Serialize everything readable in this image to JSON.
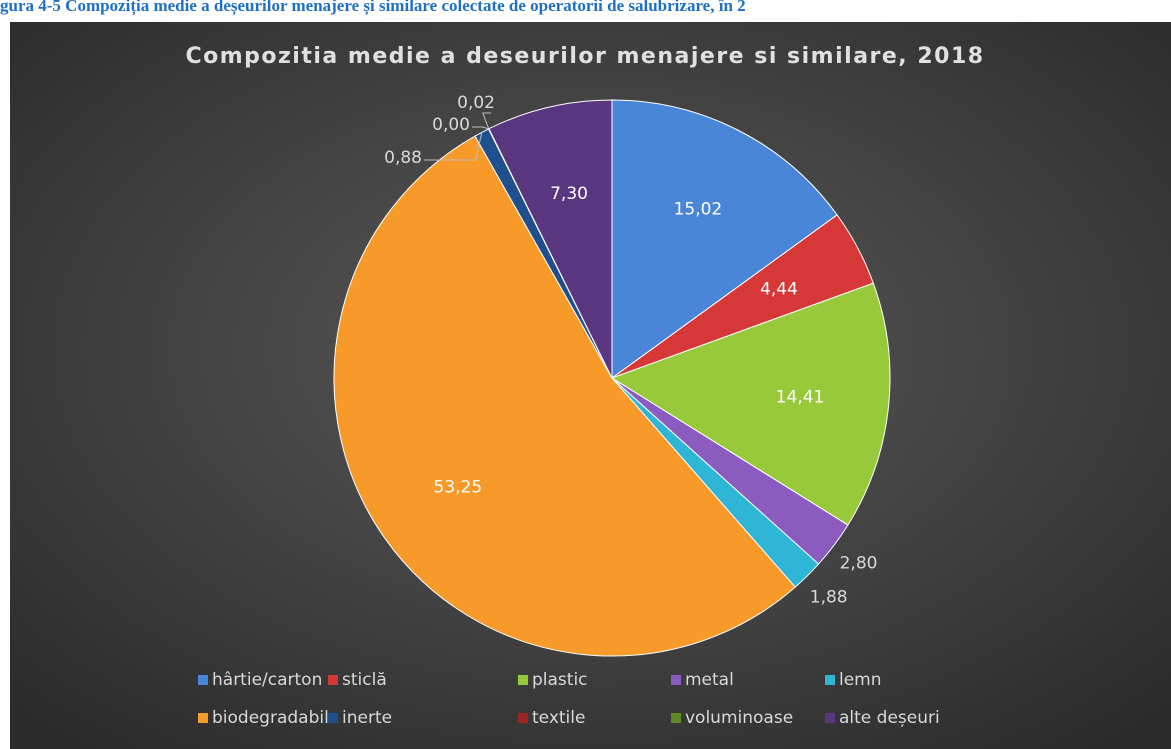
{
  "caption": "gura 4-5 Compoziția medie a deșeurilor menajere și similare colectate de operatorii de salubrizare, în 2",
  "chart_data": {
    "type": "pie",
    "title": "Compozitia medie a deseurilor menajere si similare, 2018",
    "categories": [
      "hârtie/carton",
      "sticlă",
      "plastic",
      "metal",
      "lemn",
      "biodegradabil",
      "inerte",
      "textile",
      "voluminoase",
      "alte deșeuri"
    ],
    "values": [
      15.02,
      4.44,
      14.41,
      2.8,
      1.88,
      53.25,
      0.88,
      0.0,
      0.02,
      7.3
    ],
    "value_labels": [
      "15,02",
      "4,44",
      "14,41",
      "2,80",
      "1,88",
      "53,25",
      "0,88",
      "0,00",
      "0,02",
      "7,30"
    ],
    "colors": [
      "#4a86d8",
      "#d63838",
      "#97c93a",
      "#8a5cc0",
      "#2fb5d5",
      "#f79a2a",
      "#1f4f8c",
      "#9c2626",
      "#5f8a23",
      "#5a3580"
    ],
    "legend": "bottom"
  }
}
